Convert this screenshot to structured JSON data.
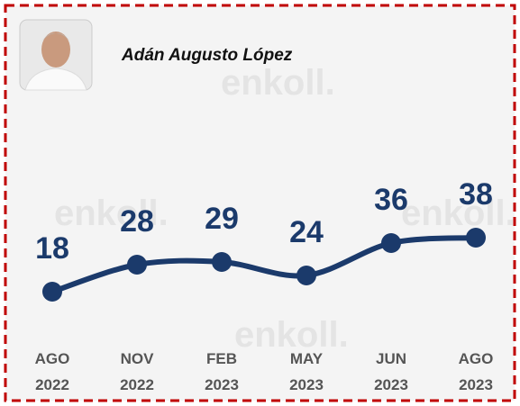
{
  "chart_data": {
    "type": "line",
    "title": "Adán Augusto López",
    "watermark": "enkoll.",
    "categories": [
      "AGO 2022",
      "NOV 2022",
      "FEB 2023",
      "MAY 2023",
      "JUN 2023",
      "AGO 2023"
    ],
    "values": [
      18,
      28,
      29,
      24,
      36,
      38
    ],
    "color": "#1b3a6b"
  }
}
